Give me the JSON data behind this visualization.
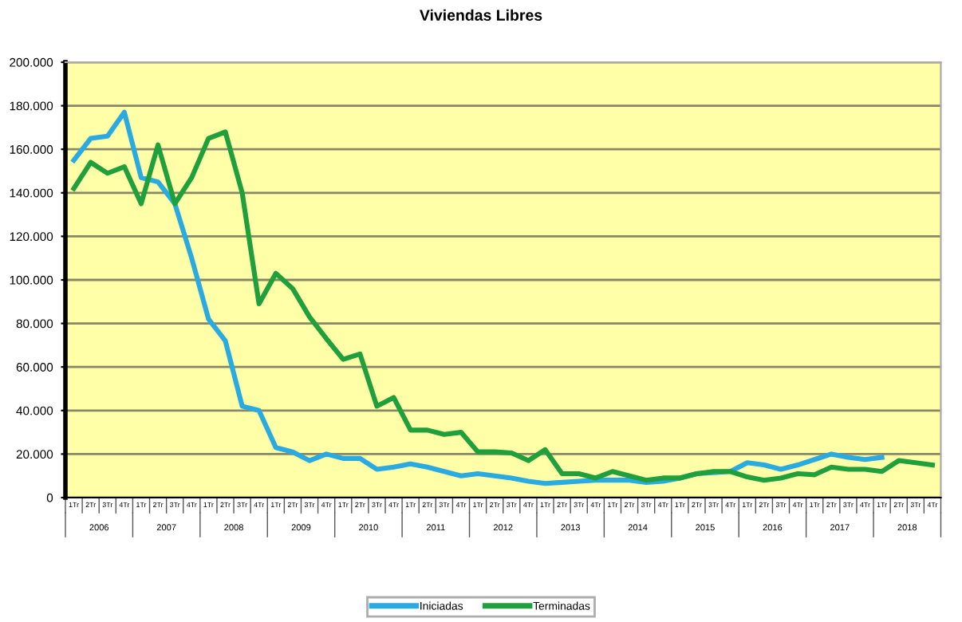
{
  "chart_data": {
    "type": "line",
    "title": "Viviendas Libres",
    "categories": [
      "1Tr",
      "2Tr",
      "3Tr",
      "4Tr",
      "1Tr",
      "2Tr",
      "3Tr",
      "4Tr",
      "1Tr",
      "2Tr",
      "3Tr",
      "4Tr",
      "1Tr",
      "2Tr",
      "3Tr",
      "4Tr",
      "1Tr",
      "2Tr",
      "3Tr",
      "4Tr",
      "1Tr",
      "2Tr",
      "3Tr",
      "4Tr",
      "1Tr",
      "2Tr",
      "3Tr",
      "4Tr",
      "1Tr",
      "2Tr",
      "3Tr",
      "4Tr",
      "1Tr",
      "2Tr",
      "3Tr",
      "4Tr",
      "1Tr",
      "2Tr",
      "3Tr",
      "4Tr",
      "1Tr",
      "2Tr",
      "3Tr",
      "4Tr",
      "1Tr",
      "2Tr",
      "3Tr",
      "4Tr",
      "1Tr",
      "2Tr",
      "3Tr",
      "4Tr"
    ],
    "annotations": [
      "2006",
      "2007",
      "2008",
      "2009",
      "2010",
      "2011",
      "2012",
      "2013",
      "2014",
      "2015",
      "2016",
      "2017",
      "2018"
    ],
    "series": [
      {
        "name": "Iniciadas",
        "color": "#29aae1",
        "values": [
          155000,
          165000,
          166000,
          177000,
          147000,
          145000,
          135000,
          110000,
          82000,
          72000,
          42000,
          40000,
          23000,
          21000,
          17000,
          20000,
          18000,
          18000,
          13000,
          14000,
          15500,
          14000,
          12000,
          10000,
          11000,
          10000,
          9000,
          7500,
          6500,
          7000,
          7500,
          8000,
          8000,
          8000,
          7000,
          7500,
          9000,
          11000,
          11500,
          12000,
          16000,
          15000,
          13000,
          15000,
          17500,
          20000,
          18500,
          17500,
          18500,
          null,
          null,
          null
        ]
      },
      {
        "name": "Terminadas",
        "color": "#1fa03c",
        "values": [
          142000,
          154000,
          149000,
          152000,
          135000,
          162000,
          135000,
          147000,
          165000,
          168000,
          140000,
          89000,
          103000,
          96000,
          83000,
          73000,
          63500,
          66000,
          42000,
          46000,
          31000,
          31000,
          29000,
          30000,
          21000,
          21000,
          20500,
          17000,
          22000,
          11000,
          11000,
          9000,
          12000,
          10000,
          8000,
          9000,
          9000,
          11000,
          12000,
          12000,
          9500,
          8000,
          9000,
          11000,
          10500,
          14000,
          13000,
          13000,
          12000,
          17000,
          16000,
          15000
        ]
      }
    ],
    "ylim": [
      0,
      200000
    ],
    "yticks": [
      {
        "value": 0,
        "label": "0"
      },
      {
        "value": 20000,
        "label": "20.000"
      },
      {
        "value": 40000,
        "label": "40.000"
      },
      {
        "value": 60000,
        "label": "60.000"
      },
      {
        "value": 80000,
        "label": "80.000"
      },
      {
        "value": 100000,
        "label": "100.000"
      },
      {
        "value": 120000,
        "label": "120.000"
      },
      {
        "value": 140000,
        "label": "140.000"
      },
      {
        "value": 160000,
        "label": "160.000"
      },
      {
        "value": 180000,
        "label": "180.000"
      },
      {
        "value": 200000,
        "label": "200.000"
      }
    ],
    "grid": "y",
    "legend": "bottom",
    "marker": "none",
    "line_style": "solid"
  }
}
